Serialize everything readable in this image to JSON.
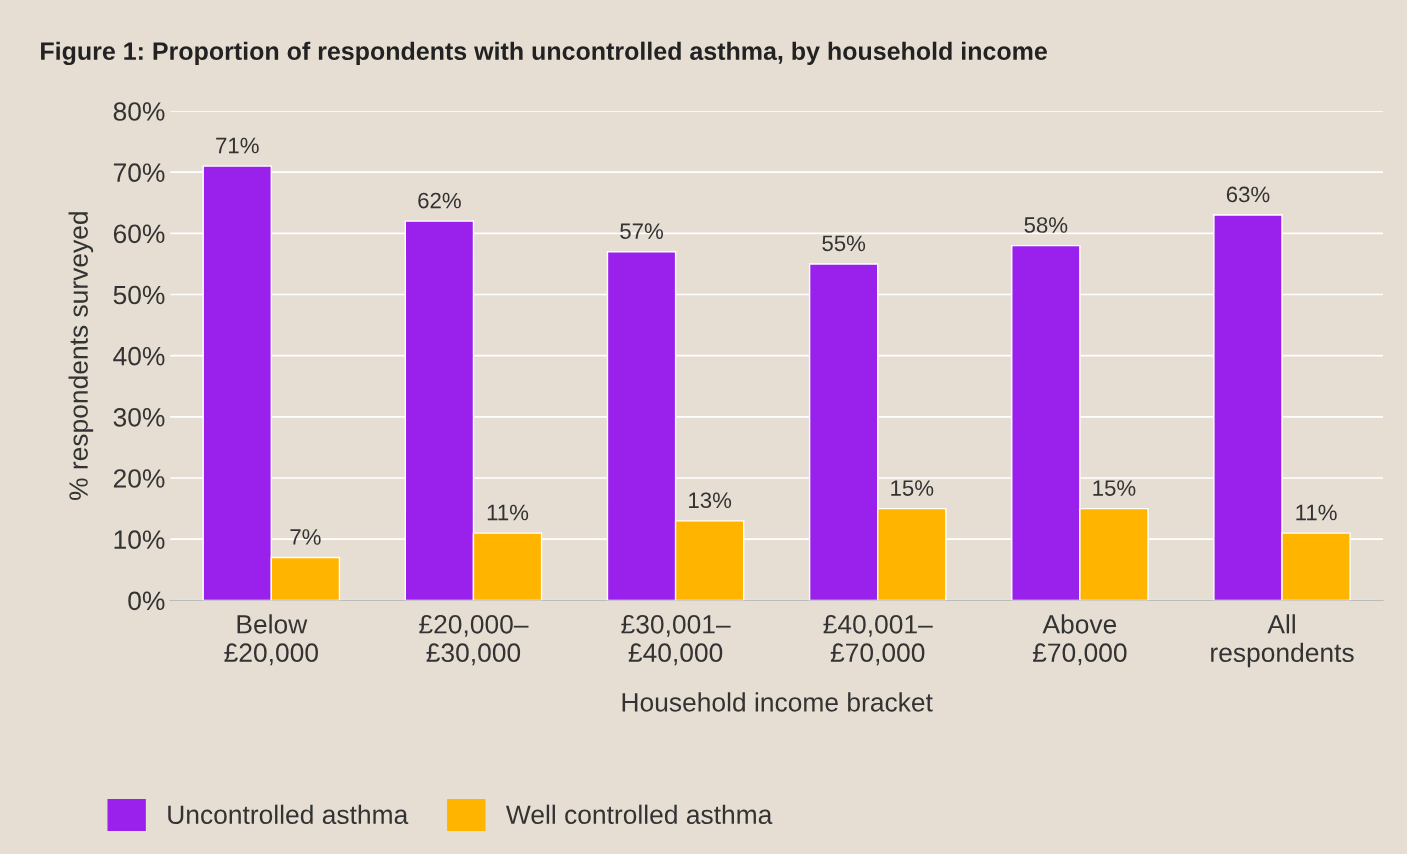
{
  "chart_data": {
    "type": "bar",
    "title": "Figure 1: Proportion of respondents with uncontrolled asthma, by household income",
    "xlabel": "Household income bracket",
    "ylabel": "% respondents surveyed",
    "categories": [
      "Below\n£20,000",
      "£20,000–\n£30,000",
      "£30,001–\n£40,000",
      "£40,001–\n£70,000",
      "Above\n£70,000",
      "All\nrespondents"
    ],
    "series": [
      {
        "name": "Uncontrolled asthma",
        "color": "#9a20ec",
        "values": [
          71,
          62,
          57,
          55,
          58,
          63
        ],
        "value_labels": [
          "71%",
          "62%",
          "57%",
          "55%",
          "58%",
          "63%"
        ]
      },
      {
        "name": "Well controlled asthma",
        "color": "#ffb400",
        "values": [
          7,
          11,
          13,
          15,
          15,
          11
        ],
        "value_labels": [
          "7%",
          "11%",
          "13%",
          "15%",
          "15%",
          "11%"
        ]
      }
    ],
    "ylim": [
      0,
      80
    ],
    "yticks": [
      {
        "value": 0,
        "label": "0%"
      },
      {
        "value": 10,
        "label": "10%"
      },
      {
        "value": 20,
        "label": "20%"
      },
      {
        "value": 30,
        "label": "30%"
      },
      {
        "value": 40,
        "label": "40%"
      },
      {
        "value": 50,
        "label": "50%"
      },
      {
        "value": 60,
        "label": "60%"
      },
      {
        "value": 70,
        "label": "70%"
      },
      {
        "value": 80,
        "label": "80%"
      }
    ],
    "grid": "y",
    "legend": "bottom left"
  }
}
